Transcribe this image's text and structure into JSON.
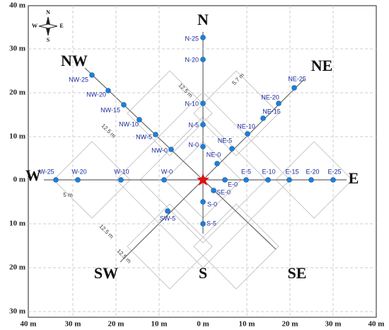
{
  "compass": {
    "n": "N",
    "e": "E",
    "s": "S",
    "w": "W"
  },
  "x_ticks": [
    "40 m",
    "30 m",
    "20 m",
    "10 m",
    "0 m",
    "10 m",
    "20 m",
    "30 m",
    "40 m"
  ],
  "y_ticks": [
    "40 m",
    "30 m",
    "20 m",
    "10 m",
    "0 m",
    "10 m",
    "20 m",
    "30 m"
  ],
  "directions": [
    "N",
    "NE",
    "E",
    "SE",
    "S",
    "SW",
    "W",
    "NW"
  ],
  "dimensions": [
    "12.5 m",
    "5.7 m",
    "12.5 m",
    "5 m",
    "12.5 m",
    "12.5 m"
  ],
  "points": [
    "N-25",
    "N-20",
    "N-10",
    "N-5",
    "N-0",
    "NE-0",
    "NE-5",
    "NE-10",
    "NE-15",
    "NE-20",
    "NE-25",
    "E-0",
    "E-5",
    "E-10",
    "E-15",
    "E-20",
    "E-25",
    "S-0",
    "S-5",
    "SE-0",
    "SW-5",
    "W-0",
    "W-10",
    "W-20",
    "W-25",
    "NW-0",
    "NW-5",
    "NW-10",
    "NW-15",
    "NW-20",
    "NW-25"
  ]
}
